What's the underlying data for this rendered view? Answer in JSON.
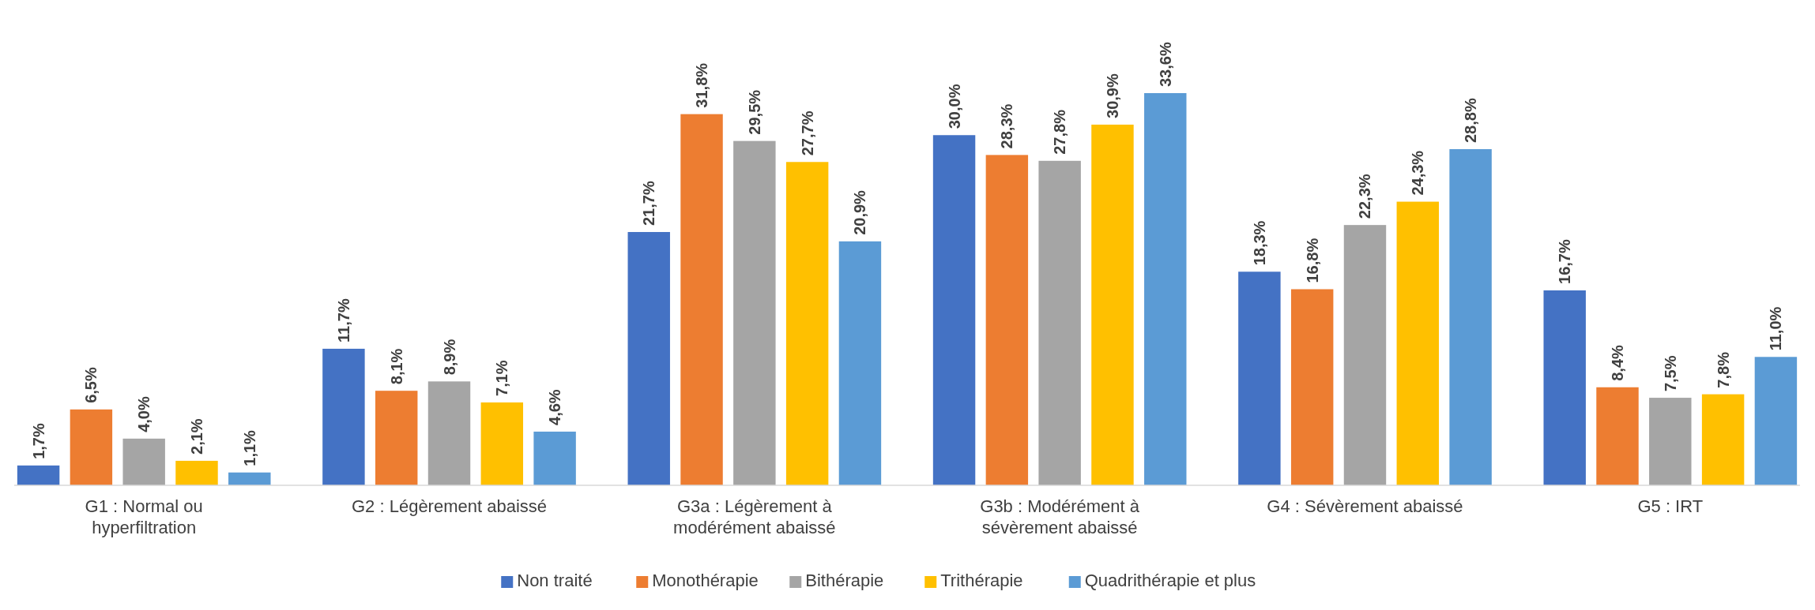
{
  "chart_data": {
    "type": "bar",
    "categories": [
      "G1 : Normal ou hyperfiltration",
      "G2 : Légèrement abaissé",
      "G3a : Légèrement à modérément abaissé",
      "G3b : Modérément à sévèrement abaissé",
      "G4 : Sévèrement abaissé",
      "G5 : IRT"
    ],
    "series": [
      {
        "name": "Non traité",
        "color": "#4472c4",
        "values": [
          1.7,
          11.7,
          21.7,
          30.0,
          18.3,
          16.7
        ],
        "value_labels": [
          "1,7%",
          "11,7%",
          "21,7%",
          "30,0%",
          "18,3%",
          "16,7%"
        ]
      },
      {
        "name": "Monothérapie",
        "color": "#ed7d31",
        "values": [
          6.5,
          8.1,
          31.8,
          28.3,
          16.8,
          8.4
        ],
        "value_labels": [
          "6,5%",
          "8,1%",
          "31,8%",
          "28,3%",
          "16,8%",
          "8,4%"
        ]
      },
      {
        "name": "Bithérapie",
        "color": "#a5a5a5",
        "values": [
          4.0,
          8.9,
          29.5,
          27.8,
          22.3,
          7.5
        ],
        "value_labels": [
          "4,0%",
          "8,9%",
          "29,5%",
          "27,8%",
          "22,3%",
          "7,5%"
        ]
      },
      {
        "name": "Trithérapie",
        "color": "#ffc000",
        "values": [
          2.1,
          7.1,
          27.7,
          30.9,
          24.3,
          7.8
        ],
        "value_labels": [
          "2,1%",
          "7,1%",
          "27,7%",
          "30,9%",
          "24,3%",
          "7,8%"
        ]
      },
      {
        "name": "Quadrithérapie et plus",
        "color": "#5b9bd5",
        "values": [
          1.1,
          4.6,
          20.9,
          33.6,
          28.8,
          11.0
        ],
        "value_labels": [
          "1,1%",
          "4,6%",
          "20,9%",
          "33,6%",
          "28,8%",
          "11,0%"
        ]
      }
    ],
    "legend": "bottom"
  }
}
